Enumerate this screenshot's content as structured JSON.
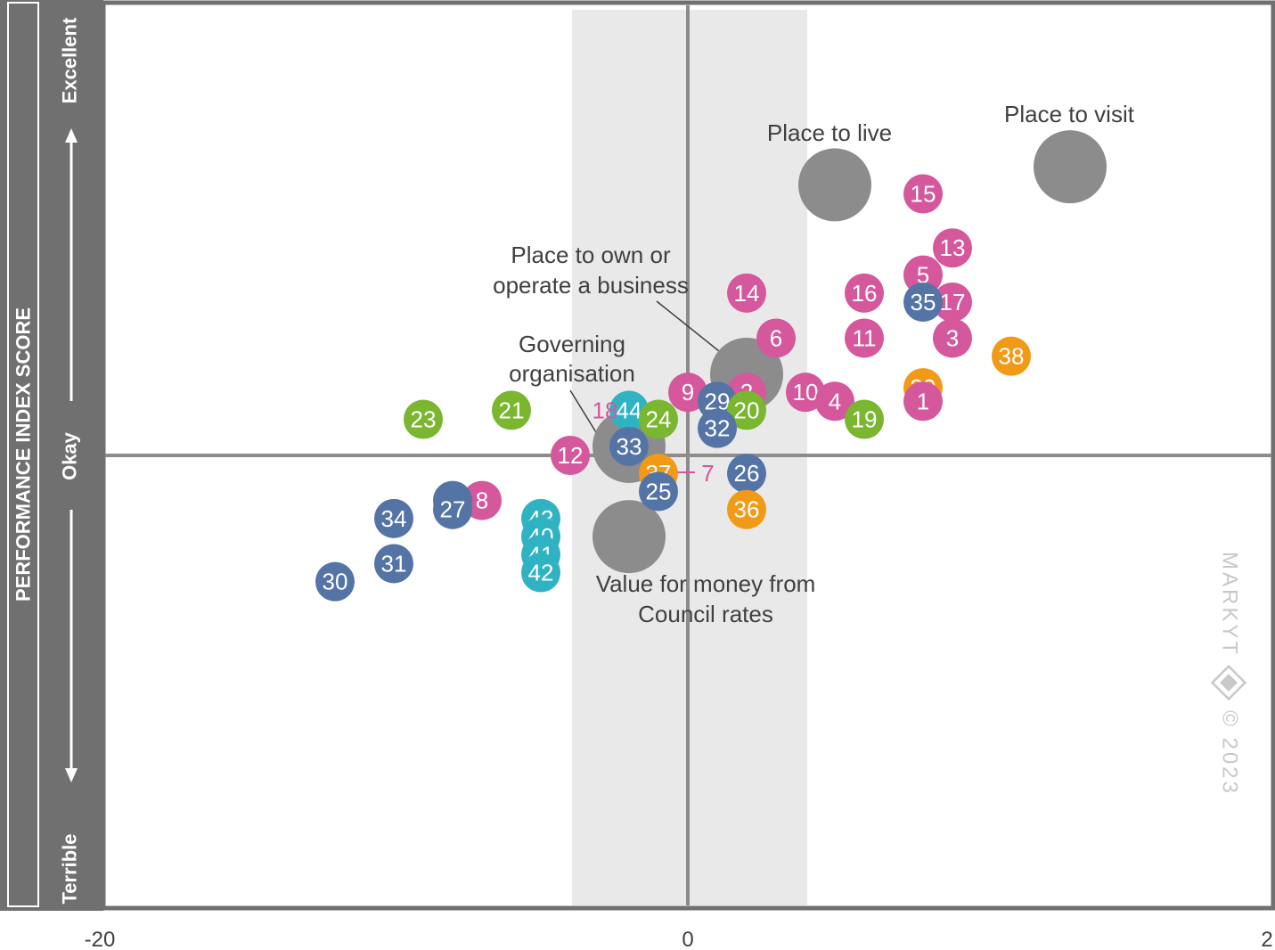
{
  "chart_data": {
    "type": "scatter",
    "title": "",
    "xlabel": "",
    "ylabel": "PERFORMANCE INDEX SCORE",
    "xlim": [
      -20,
      20
    ],
    "ylim": [
      -50,
      50
    ],
    "x_ticks": [
      "-20",
      "0",
      "2"
    ],
    "y_scale_labels": {
      "top": "Excellent",
      "middle": "Okay",
      "bottom": "Terrible"
    },
    "shaded_band": [
      -4,
      4
    ],
    "colors": {
      "pink": "#d4589b",
      "blue": "#5474a6",
      "green": "#7ab62f",
      "orange": "#f19a17",
      "teal": "#2fb3c3",
      "gray": "#8c8c8c",
      "frame": "#707070",
      "pink_label": "#d4589b"
    },
    "big_bubbles": [
      {
        "label": "Place to visit",
        "x": 13,
        "y": 32
      },
      {
        "label": "Place to live",
        "x": 5,
        "y": 30
      },
      {
        "label": "Place to own or operate a business",
        "x": 2,
        "y": 9
      },
      {
        "label": "Governing organisation",
        "x": -2,
        "y": 1
      },
      {
        "label": "Value for money from Council rates",
        "x": -2,
        "y": -9
      }
    ],
    "points": [
      {
        "id": "15",
        "x": 8,
        "y": 29,
        "group": "pink"
      },
      {
        "id": "13",
        "x": 9,
        "y": 23,
        "group": "pink"
      },
      {
        "id": "5",
        "x": 8,
        "y": 20,
        "group": "pink"
      },
      {
        "id": "16",
        "x": 6,
        "y": 18,
        "group": "pink"
      },
      {
        "id": "14",
        "x": 2,
        "y": 18,
        "group": "pink"
      },
      {
        "id": "17",
        "x": 9,
        "y": 17,
        "group": "pink"
      },
      {
        "id": "35",
        "x": 8,
        "y": 17,
        "group": "blue"
      },
      {
        "id": "6",
        "x": 3,
        "y": 13,
        "group": "pink"
      },
      {
        "id": "11",
        "x": 6,
        "y": 13,
        "group": "pink"
      },
      {
        "id": "3",
        "x": 9,
        "y": 13,
        "group": "pink"
      },
      {
        "id": "38",
        "x": 11,
        "y": 11,
        "group": "orange"
      },
      {
        "id": "39",
        "x": 8,
        "y": 7.5,
        "group": "orange"
      },
      {
        "id": "1",
        "x": 8,
        "y": 6,
        "group": "pink"
      },
      {
        "id": "10",
        "x": 4,
        "y": 7,
        "group": "pink"
      },
      {
        "id": "4",
        "x": 5,
        "y": 6,
        "group": "pink"
      },
      {
        "id": "19",
        "x": 6,
        "y": 4,
        "group": "green"
      },
      {
        "id": "9",
        "x": 0,
        "y": 7,
        "group": "pink"
      },
      {
        "id": "2",
        "x": 2,
        "y": 7,
        "group": "pink"
      },
      {
        "id": "29",
        "x": 1,
        "y": 6,
        "group": "blue"
      },
      {
        "id": "20",
        "x": 2,
        "y": 5,
        "group": "green"
      },
      {
        "id": "32",
        "x": 1,
        "y": 3,
        "group": "blue"
      },
      {
        "id": "44",
        "x": -2,
        "y": 5,
        "group": "teal"
      },
      {
        "id": "24",
        "x": -1,
        "y": 4,
        "group": "green"
      },
      {
        "id": "23",
        "x": -9,
        "y": 4,
        "group": "green"
      },
      {
        "id": "21",
        "x": -6,
        "y": 5,
        "group": "green"
      },
      {
        "id": "33",
        "x": -2,
        "y": 1,
        "group": "blue"
      },
      {
        "id": "12",
        "x": -4,
        "y": 0,
        "group": "pink"
      },
      {
        "id": "37",
        "x": -1,
        "y": -2,
        "group": "orange"
      },
      {
        "id": "26",
        "x": 2,
        "y": -2,
        "group": "blue"
      },
      {
        "id": "25",
        "x": -1,
        "y": -4,
        "group": "blue"
      },
      {
        "id": "36",
        "x": 2,
        "y": -6,
        "group": "orange"
      },
      {
        "id": "8",
        "x": -7,
        "y": -5,
        "group": "pink"
      },
      {
        "id": "28",
        "x": -8,
        "y": -5,
        "group": "blue"
      },
      {
        "id": "27",
        "x": -8,
        "y": -6,
        "group": "blue"
      },
      {
        "id": "34",
        "x": -10,
        "y": -7,
        "group": "blue"
      },
      {
        "id": "31",
        "x": -10,
        "y": -12,
        "group": "blue"
      },
      {
        "id": "30",
        "x": -12,
        "y": -14,
        "group": "blue"
      },
      {
        "id": "43",
        "x": -5,
        "y": -7,
        "group": "teal"
      },
      {
        "id": "40",
        "x": -5,
        "y": -9,
        "group": "teal"
      },
      {
        "id": "41",
        "x": -5,
        "y": -11,
        "group": "teal"
      },
      {
        "id": "42",
        "x": -5,
        "y": -13,
        "group": "teal"
      }
    ],
    "text_only_points": [
      {
        "id": "18",
        "x": -3,
        "y": 5,
        "group": "pink_label"
      },
      {
        "id": "7",
        "x": 0.5,
        "y": -2,
        "group": "pink_label"
      }
    ]
  },
  "watermark": {
    "brand": "MARKYT",
    "copyright": "© 2023"
  }
}
